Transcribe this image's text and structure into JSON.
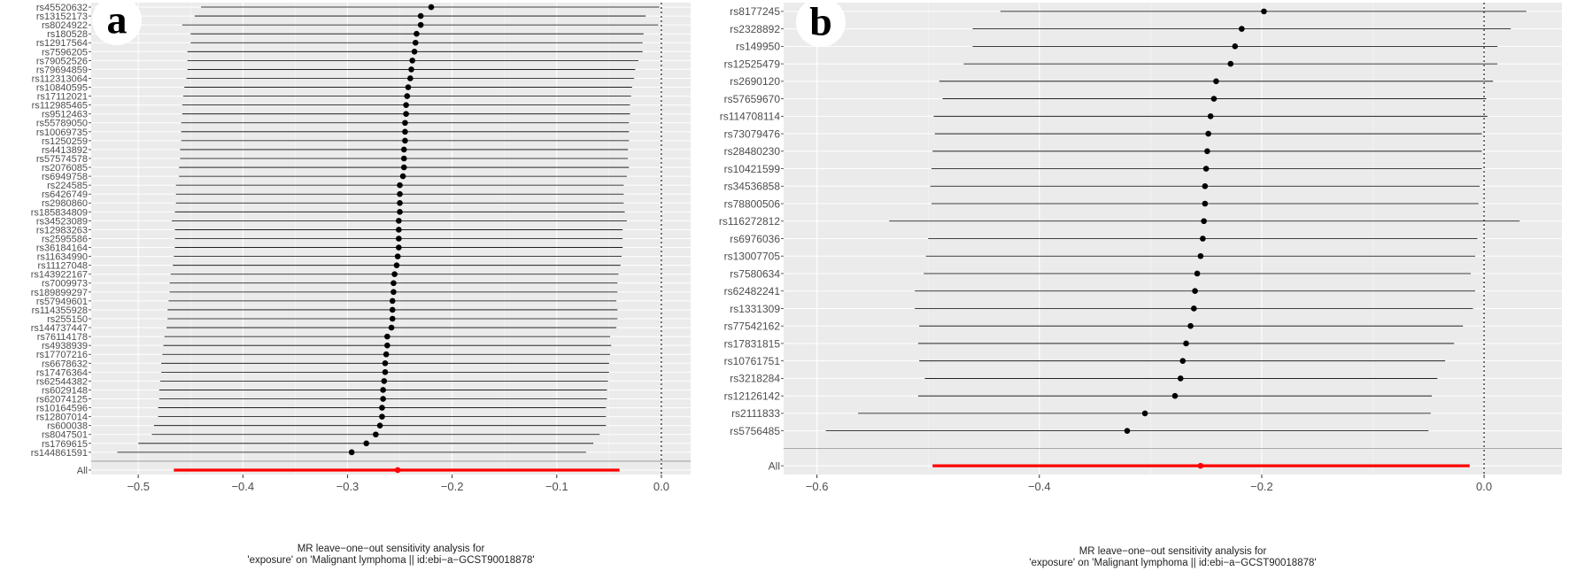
{
  "chart_data": [
    {
      "type": "forest",
      "panel_label": "a",
      "xlabel_line1": "MR leave−one−out sensitivity analysis for",
      "xlabel_line2": "'exposure' on 'Malignant lymphoma || id:ebi−a−GCST90018878'",
      "xlim": [
        -0.545,
        0.028
      ],
      "xticks": [
        -0.5,
        -0.4,
        -0.3,
        -0.2,
        -0.1,
        0.0
      ],
      "xtick_labels": [
        "−0.5",
        "−0.4",
        "−0.3",
        "−0.2",
        "−0.1",
        "0.0"
      ],
      "reference_line": 0,
      "points": [
        {
          "label": "rs45520632",
          "b": -0.22,
          "lo": -0.44,
          "hi": -0.002
        },
        {
          "label": "rs13152173",
          "b": -0.23,
          "lo": -0.446,
          "hi": -0.015
        },
        {
          "label": "rs8024922",
          "b": -0.23,
          "lo": -0.458,
          "hi": -0.003
        },
        {
          "label": "rs180528",
          "b": -0.234,
          "lo": -0.45,
          "hi": -0.017
        },
        {
          "label": "rs12917564",
          "b": -0.235,
          "lo": -0.45,
          "hi": -0.018
        },
        {
          "label": "rs7596205",
          "b": -0.236,
          "lo": -0.453,
          "hi": -0.018
        },
        {
          "label": "rs79052526",
          "b": -0.238,
          "lo": -0.453,
          "hi": -0.022
        },
        {
          "label": "rs79694859",
          "b": -0.239,
          "lo": -0.453,
          "hi": -0.025
        },
        {
          "label": "rs112313064",
          "b": -0.24,
          "lo": -0.454,
          "hi": -0.026
        },
        {
          "label": "rs10840595",
          "b": -0.242,
          "lo": -0.456,
          "hi": -0.028
        },
        {
          "label": "rs17112021",
          "b": -0.243,
          "lo": -0.457,
          "hi": -0.029
        },
        {
          "label": "rs112985465",
          "b": -0.244,
          "lo": -0.458,
          "hi": -0.03
        },
        {
          "label": "rs9512463",
          "b": -0.244,
          "lo": -0.458,
          "hi": -0.03
        },
        {
          "label": "rs55789050",
          "b": -0.245,
          "lo": -0.459,
          "hi": -0.031
        },
        {
          "label": "rs10069735",
          "b": -0.245,
          "lo": -0.459,
          "hi": -0.031
        },
        {
          "label": "rs1250259",
          "b": -0.245,
          "lo": -0.459,
          "hi": -0.031
        },
        {
          "label": "rs4413892",
          "b": -0.246,
          "lo": -0.46,
          "hi": -0.032
        },
        {
          "label": "rs57574578",
          "b": -0.246,
          "lo": -0.46,
          "hi": -0.032
        },
        {
          "label": "rs2076085",
          "b": -0.246,
          "lo": -0.461,
          "hi": -0.031
        },
        {
          "label": "rs6949758",
          "b": -0.247,
          "lo": -0.461,
          "hi": -0.033
        },
        {
          "label": "rs224585",
          "b": -0.25,
          "lo": -0.464,
          "hi": -0.036
        },
        {
          "label": "rs6426749",
          "b": -0.25,
          "lo": -0.464,
          "hi": -0.036
        },
        {
          "label": "rs2980860",
          "b": -0.25,
          "lo": -0.464,
          "hi": -0.036
        },
        {
          "label": "rs185834809",
          "b": -0.25,
          "lo": -0.465,
          "hi": -0.035
        },
        {
          "label": "rs34523089",
          "b": -0.251,
          "lo": -0.468,
          "hi": -0.033
        },
        {
          "label": "rs12983263",
          "b": -0.251,
          "lo": -0.465,
          "hi": -0.037
        },
        {
          "label": "rs2595586",
          "b": -0.251,
          "lo": -0.465,
          "hi": -0.037
        },
        {
          "label": "rs36184164",
          "b": -0.251,
          "lo": -0.465,
          "hi": -0.037
        },
        {
          "label": "rs11634990",
          "b": -0.252,
          "lo": -0.466,
          "hi": -0.038
        },
        {
          "label": "rs11127048",
          "b": -0.253,
          "lo": -0.467,
          "hi": -0.039
        },
        {
          "label": "rs143922167",
          "b": -0.255,
          "lo": -0.469,
          "hi": -0.041
        },
        {
          "label": "rs7009973",
          "b": -0.256,
          "lo": -0.47,
          "hi": -0.042
        },
        {
          "label": "rs189899297",
          "b": -0.256,
          "lo": -0.47,
          "hi": -0.042
        },
        {
          "label": "rs57949601",
          "b": -0.257,
          "lo": -0.471,
          "hi": -0.043
        },
        {
          "label": "rs114355928",
          "b": -0.257,
          "lo": -0.472,
          "hi": -0.042
        },
        {
          "label": "rs255150",
          "b": -0.257,
          "lo": -0.472,
          "hi": -0.042
        },
        {
          "label": "rs144737447",
          "b": -0.258,
          "lo": -0.473,
          "hi": -0.043
        },
        {
          "label": "rs76114178",
          "b": -0.262,
          "lo": -0.475,
          "hi": -0.049
        },
        {
          "label": "rs4938939",
          "b": -0.262,
          "lo": -0.476,
          "hi": -0.048
        },
        {
          "label": "rs17707216",
          "b": -0.263,
          "lo": -0.477,
          "hi": -0.049
        },
        {
          "label": "rs6678632",
          "b": -0.264,
          "lo": -0.478,
          "hi": -0.05
        },
        {
          "label": "rs17476364",
          "b": -0.264,
          "lo": -0.478,
          "hi": -0.05
        },
        {
          "label": "rs62544382",
          "b": -0.265,
          "lo": -0.479,
          "hi": -0.051
        },
        {
          "label": "rs6029148",
          "b": -0.266,
          "lo": -0.48,
          "hi": -0.052
        },
        {
          "label": "rs62074125",
          "b": -0.266,
          "lo": -0.48,
          "hi": -0.052
        },
        {
          "label": "rs10164596",
          "b": -0.267,
          "lo": -0.481,
          "hi": -0.053
        },
        {
          "label": "rs12807014",
          "b": -0.267,
          "lo": -0.481,
          "hi": -0.053
        },
        {
          "label": "rs600038",
          "b": -0.269,
          "lo": -0.485,
          "hi": -0.053
        },
        {
          "label": "rs8047501",
          "b": -0.273,
          "lo": -0.487,
          "hi": -0.059
        },
        {
          "label": "rs1769615",
          "b": -0.282,
          "lo": -0.5,
          "hi": -0.065
        },
        {
          "label": "rs144861591",
          "b": -0.296,
          "lo": -0.52,
          "hi": -0.072
        }
      ],
      "overall": {
        "label": "All",
        "b": -0.252,
        "lo": -0.466,
        "hi": -0.04
      }
    },
    {
      "type": "forest",
      "panel_label": "b",
      "xlabel_line1": "MR leave−one−out sensitivity analysis for",
      "xlabel_line2": "'exposure' on 'Malignant lymphoma || id:ebi−a−GCST90018878'",
      "xlim": [
        -0.63,
        0.07
      ],
      "xticks": [
        -0.6,
        -0.4,
        -0.2,
        0.0
      ],
      "xtick_labels": [
        "−0.6",
        "−0.4",
        "−0.2",
        "0.0"
      ],
      "reference_line": 0,
      "points": [
        {
          "label": "rs8177245",
          "b": -0.198,
          "lo": -0.435,
          "hi": 0.038
        },
        {
          "label": "rs2328892",
          "b": -0.218,
          "lo": -0.46,
          "hi": 0.024
        },
        {
          "label": "rs149950",
          "b": -0.224,
          "lo": -0.46,
          "hi": 0.012
        },
        {
          "label": "rs12525479",
          "b": -0.228,
          "lo": -0.468,
          "hi": 0.012
        },
        {
          "label": "rs2690120",
          "b": -0.241,
          "lo": -0.49,
          "hi": 0.008
        },
        {
          "label": "rs57659670",
          "b": -0.243,
          "lo": -0.487,
          "hi": 0.002
        },
        {
          "label": "rs114708114",
          "b": -0.246,
          "lo": -0.495,
          "hi": 0.003
        },
        {
          "label": "rs73079476",
          "b": -0.248,
          "lo": -0.494,
          "hi": -0.002
        },
        {
          "label": "rs28480230",
          "b": -0.249,
          "lo": -0.496,
          "hi": -0.002
        },
        {
          "label": "rs10421599",
          "b": -0.25,
          "lo": -0.497,
          "hi": -0.002
        },
        {
          "label": "rs34536858",
          "b": -0.251,
          "lo": -0.498,
          "hi": -0.004
        },
        {
          "label": "rs78800506",
          "b": -0.251,
          "lo": -0.497,
          "hi": -0.005
        },
        {
          "label": "rs116272812",
          "b": -0.252,
          "lo": -0.535,
          "hi": 0.032
        },
        {
          "label": "rs6976036",
          "b": -0.253,
          "lo": -0.5,
          "hi": -0.006
        },
        {
          "label": "rs13007705",
          "b": -0.255,
          "lo": -0.502,
          "hi": -0.008
        },
        {
          "label": "rs7580634",
          "b": -0.258,
          "lo": -0.504,
          "hi": -0.012
        },
        {
          "label": "rs62482241",
          "b": -0.26,
          "lo": -0.512,
          "hi": -0.008
        },
        {
          "label": "rs1331309",
          "b": -0.261,
          "lo": -0.512,
          "hi": -0.01
        },
        {
          "label": "rs77542162",
          "b": -0.264,
          "lo": -0.508,
          "hi": -0.019
        },
        {
          "label": "rs17831815",
          "b": -0.268,
          "lo": -0.509,
          "hi": -0.027
        },
        {
          "label": "rs10761751",
          "b": -0.271,
          "lo": -0.508,
          "hi": -0.035
        },
        {
          "label": "rs3218284",
          "b": -0.273,
          "lo": -0.503,
          "hi": -0.042
        },
        {
          "label": "rs12126142",
          "b": -0.278,
          "lo": -0.509,
          "hi": -0.047
        },
        {
          "label": "rs2111833",
          "b": -0.305,
          "lo": -0.563,
          "hi": -0.048
        },
        {
          "label": "rs5756485",
          "b": -0.321,
          "lo": -0.592,
          "hi": -0.05
        }
      ],
      "overall": {
        "label": "All",
        "b": -0.255,
        "lo": -0.496,
        "hi": -0.013
      }
    }
  ]
}
